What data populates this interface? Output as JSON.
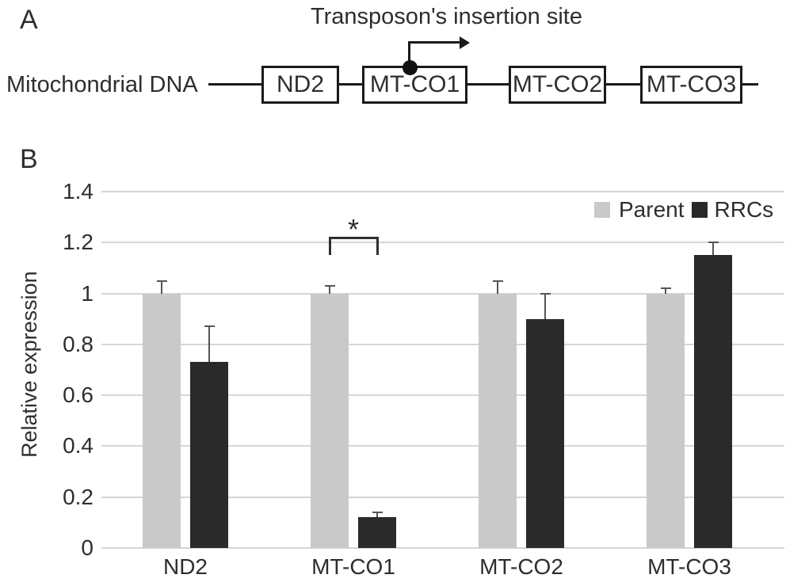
{
  "figure": {
    "background": "#ffffff",
    "panel_a": {
      "label": "A",
      "title": "Transposon's insertion site",
      "dna_label": "Mitochondrial DNA",
      "genes": [
        "ND2",
        "MT-CO1",
        "MT-CO2",
        "MT-CO3"
      ],
      "insertion_gene": "MT-CO1"
    },
    "panel_b": {
      "label": "B"
    }
  },
  "chart_data": {
    "type": "bar",
    "title": "",
    "categories": [
      "ND2",
      "MT-CO1",
      "MT-CO2",
      "MT-CO3"
    ],
    "series": [
      {
        "name": "Parent",
        "color": "#c9c9c9",
        "values": [
          1.0,
          1.0,
          1.0,
          1.0
        ],
        "errors": [
          0.05,
          0.03,
          0.05,
          0.02
        ]
      },
      {
        "name": "RRCs",
        "color": "#2a2a2a",
        "values": [
          0.73,
          0.12,
          0.9,
          1.15
        ],
        "errors": [
          0.14,
          0.02,
          0.1,
          0.05
        ]
      }
    ],
    "xlabel": "",
    "ylabel": "Relative expression",
    "ylim": [
      0,
      1.4
    ],
    "ytick_step": 0.2,
    "yticks": [
      "0",
      "0.2",
      "0.4",
      "0.6",
      "0.8",
      "1",
      "1.2",
      "1.4"
    ],
    "grid": true,
    "legend_position": "top-right",
    "gridline_color": "#d6d6d6",
    "error_color": "#555555",
    "significance": {
      "category": "MT-CO1",
      "label": "*",
      "between": [
        "Parent",
        "RRCs"
      ]
    }
  }
}
